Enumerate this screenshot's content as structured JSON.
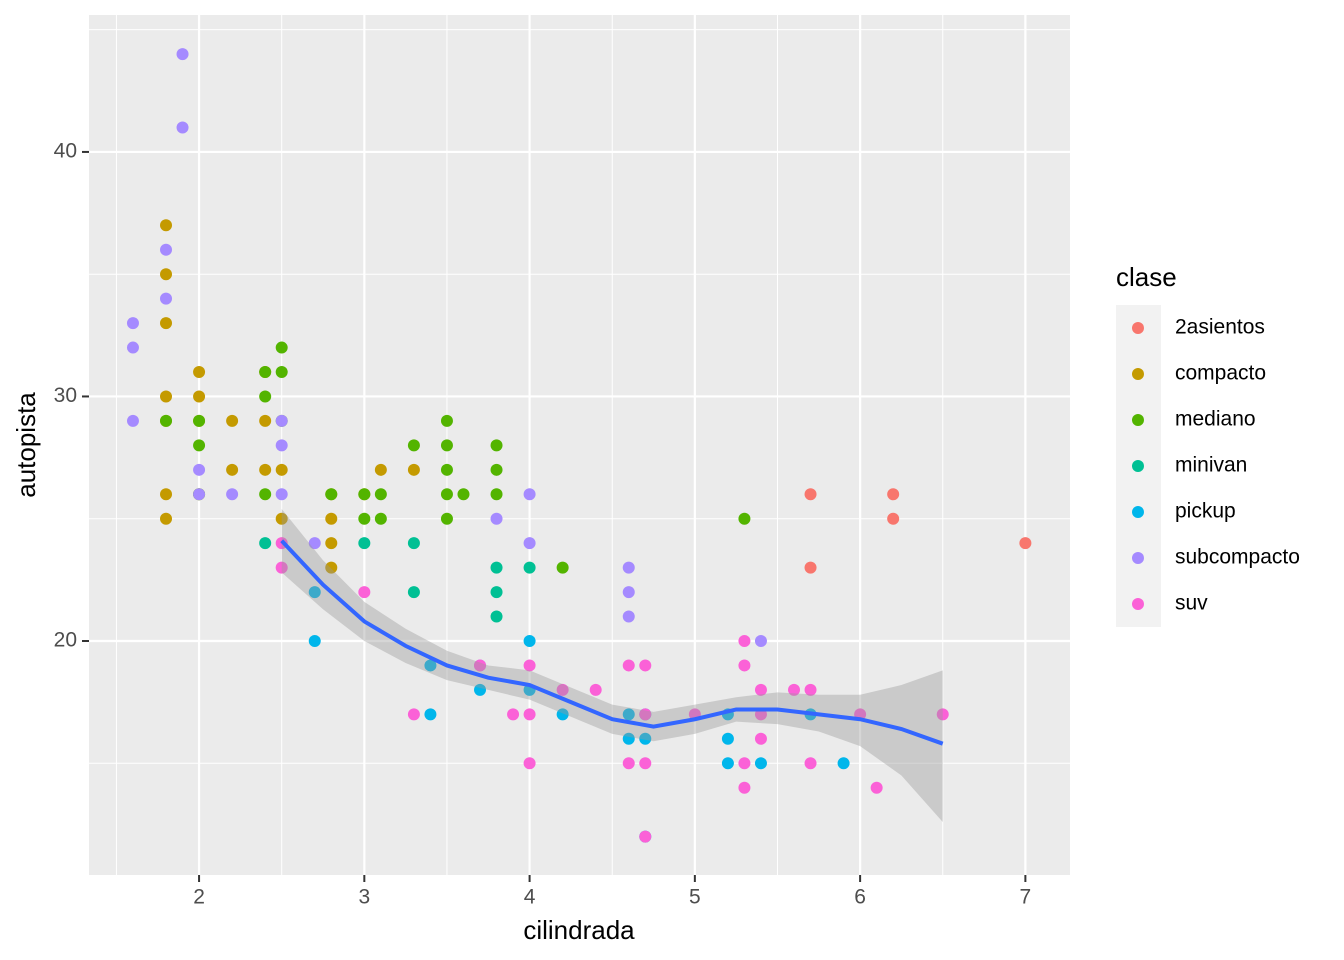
{
  "chart_data": {
    "type": "scatter",
    "x_label": "cilindrada",
    "y_label": "autopista",
    "legend_title": "clase",
    "xlim": [
      1.334,
      7.27
    ],
    "ylim": [
      10.43,
      45.6
    ],
    "xticks": [
      2,
      3,
      4,
      5,
      6,
      7
    ],
    "yticks": [
      20,
      30,
      40
    ],
    "x_minor_ticks": [
      1.5,
      2.5,
      3.5,
      4.5,
      5.5,
      6.5
    ],
    "y_minor_ticks": [
      15,
      25,
      35,
      45
    ],
    "grid": true,
    "legend": "right",
    "series": [
      {
        "name": "2asientos",
        "color": "#F8766D",
        "x": [
          5.7,
          5.7,
          6.2,
          6.2,
          7.0
        ],
        "values": [
          26,
          23,
          26,
          25,
          24
        ]
      },
      {
        "name": "compacto",
        "color": "#C49A00",
        "x": [
          1.8,
          1.8,
          1.8,
          1.8,
          1.8,
          1.8,
          1.8,
          2.0,
          2.0,
          2.0,
          2.0,
          2.2,
          2.2,
          2.4,
          2.4,
          2.4,
          2.5,
          2.5,
          2.8,
          2.8,
          2.8,
          2.8,
          3.0,
          3.1,
          3.3
        ],
        "values": [
          37,
          35,
          33,
          30,
          29,
          26,
          25,
          31,
          30,
          29,
          26,
          29,
          27,
          31,
          29,
          27,
          27,
          25,
          26,
          25,
          24,
          23,
          26,
          27,
          27
        ]
      },
      {
        "name": "mediano",
        "color": "#53B400",
        "x": [
          1.8,
          2.0,
          2.0,
          2.0,
          2.4,
          2.4,
          2.4,
          2.5,
          2.5,
          2.5,
          2.8,
          3.0,
          3.0,
          3.1,
          3.1,
          3.3,
          3.5,
          3.5,
          3.5,
          3.5,
          3.5,
          3.6,
          3.8,
          3.8,
          3.8,
          4.2,
          5.3
        ],
        "values": [
          29,
          29,
          28,
          26,
          30,
          26,
          31,
          32,
          31,
          29,
          26,
          26,
          25,
          26,
          25,
          28,
          29,
          28,
          27,
          26,
          25,
          26,
          28,
          27,
          26,
          23,
          25
        ]
      },
      {
        "name": "minivan",
        "color": "#00C094",
        "x": [
          2.4,
          3.0,
          3.3,
          3.3,
          3.8,
          3.8,
          3.8,
          4.0
        ],
        "values": [
          24,
          24,
          24,
          22,
          23,
          22,
          21,
          23
        ]
      },
      {
        "name": "pickup",
        "color": "#00B6EB",
        "x": [
          2.7,
          2.7,
          3.4,
          3.4,
          3.7,
          4.0,
          4.0,
          4.2,
          4.6,
          4.6,
          4.7,
          4.7,
          4.7,
          5.2,
          5.2,
          5.2,
          5.4,
          5.7,
          5.9
        ],
        "values": [
          20,
          22,
          17,
          19,
          18,
          20,
          18,
          17,
          17,
          16,
          17,
          16,
          12,
          17,
          16,
          15,
          15,
          17,
          15
        ]
      },
      {
        "name": "subcompacto",
        "color": "#A58AFF",
        "x": [
          1.6,
          1.6,
          1.6,
          1.8,
          1.8,
          1.9,
          1.9,
          2.0,
          2.0,
          2.2,
          2.5,
          2.5,
          2.5,
          2.7,
          3.7,
          3.8,
          4.0,
          4.0,
          4.6,
          4.6,
          4.6,
          5.4
        ],
        "values": [
          33,
          32,
          29,
          36,
          34,
          44,
          41,
          27,
          26,
          26,
          29,
          28,
          26,
          24,
          19,
          25,
          26,
          24,
          23,
          22,
          21,
          20
        ]
      },
      {
        "name": "suv",
        "color": "#FB61D7",
        "x": [
          2.5,
          2.5,
          3.0,
          3.3,
          3.7,
          3.9,
          4.0,
          4.0,
          4.0,
          4.2,
          4.4,
          4.6,
          4.6,
          4.7,
          4.7,
          4.7,
          4.7,
          5.0,
          5.3,
          5.3,
          5.3,
          5.3,
          5.4,
          5.4,
          5.4,
          5.6,
          5.7,
          5.7,
          6.0,
          6.1,
          6.5
        ],
        "values": [
          24,
          23,
          22,
          17,
          19,
          17,
          19,
          17,
          15,
          18,
          18,
          19,
          15,
          19,
          17,
          15,
          12,
          17,
          20,
          19,
          15,
          14,
          18,
          17,
          16,
          18,
          18,
          15,
          17,
          14,
          17
        ]
      }
    ],
    "smooth": {
      "color": "#3366FF",
      "x": [
        2.5,
        2.75,
        3.0,
        3.25,
        3.5,
        3.75,
        4.0,
        4.25,
        4.5,
        4.75,
        5.0,
        5.25,
        5.5,
        5.75,
        6.0,
        6.25,
        6.5
      ],
      "values": [
        24.1,
        22.3,
        20.8,
        19.8,
        19.0,
        18.5,
        18.2,
        17.5,
        16.8,
        16.5,
        16.8,
        17.2,
        17.2,
        17.0,
        16.8,
        16.4,
        15.8
      ],
      "lower": [
        22.8,
        21.3,
        20.0,
        19.1,
        18.4,
        18.0,
        17.6,
        16.9,
        16.2,
        15.9,
        16.2,
        16.7,
        16.6,
        16.3,
        15.7,
        14.5,
        12.6
      ],
      "upper": [
        25.4,
        23.3,
        21.6,
        20.5,
        19.6,
        19.0,
        18.8,
        18.1,
        17.4,
        17.1,
        17.4,
        17.7,
        17.9,
        17.8,
        17.8,
        18.2,
        18.8
      ]
    }
  }
}
